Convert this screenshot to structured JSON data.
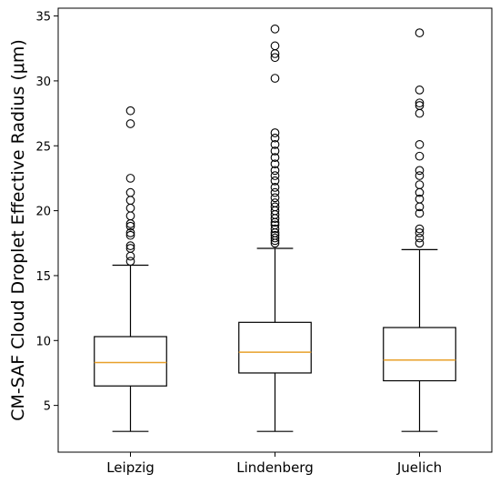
{
  "chart_data": {
    "type": "box",
    "title": "",
    "xlabel": "",
    "ylabel": "CM-SAF Cloud Droplet Effective Radius (μm)",
    "ylim": [
      1.4,
      35.6
    ],
    "yticks": [
      5,
      10,
      15,
      20,
      25,
      30,
      35
    ],
    "grid": false,
    "categories": [
      "Leipzig",
      "Lindenberg",
      "Juelich"
    ],
    "boxes": [
      {
        "category": "Leipzig",
        "whisker_low": 3.0,
        "q1": 6.5,
        "median": 8.3,
        "q3": 10.3,
        "whisker_high": 15.8,
        "outliers": [
          16.1,
          16.5,
          17.1,
          17.3,
          18.1,
          18.3,
          18.8,
          19.0,
          19.6,
          20.2,
          20.8,
          21.4,
          22.5,
          26.7,
          27.7
        ]
      },
      {
        "category": "Lindenberg",
        "whisker_low": 3.0,
        "q1": 7.5,
        "median": 9.1,
        "q3": 11.4,
        "whisker_high": 17.1,
        "outliers": [
          17.5,
          17.7,
          17.9,
          18.1,
          18.3,
          18.6,
          18.9,
          19.1,
          19.4,
          19.7,
          20.0,
          20.3,
          20.6,
          21.0,
          21.4,
          21.8,
          22.3,
          22.7,
          23.1,
          23.6,
          24.1,
          24.6,
          25.1,
          25.6,
          26.0,
          30.2,
          31.8,
          32.1,
          32.7,
          34.0
        ]
      },
      {
        "category": "Juelich",
        "whisker_low": 3.0,
        "q1": 6.9,
        "median": 8.5,
        "q3": 11.0,
        "whisker_high": 17.0,
        "outliers": [
          17.5,
          17.9,
          18.3,
          18.6,
          19.8,
          20.3,
          20.9,
          21.4,
          22.0,
          22.7,
          23.1,
          24.2,
          25.1,
          27.5,
          28.1,
          28.3,
          29.3,
          33.7
        ]
      }
    ],
    "median_color": "#e8a02a",
    "box_color": "#000000"
  }
}
